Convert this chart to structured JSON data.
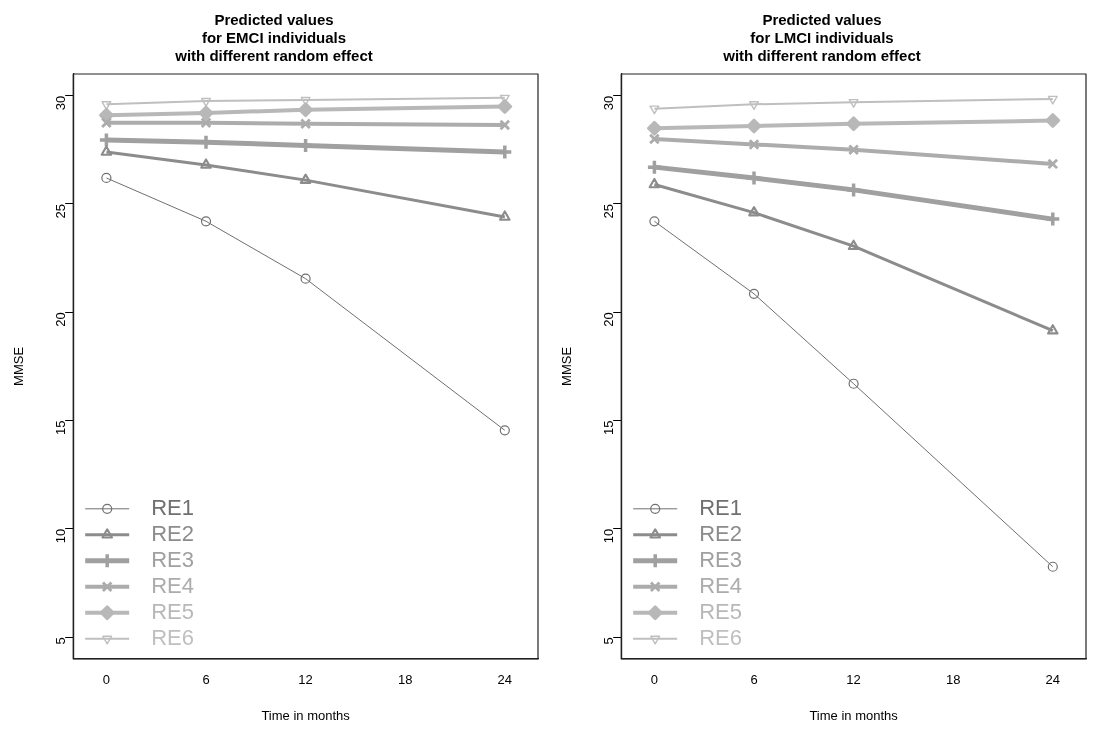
{
  "chart_data": [
    {
      "type": "line",
      "title": "Predicted values\nfor EMCI individuals\nwith different random effect",
      "xlabel": "Time in months",
      "ylabel": "MMSE",
      "x": [
        0,
        6,
        12,
        24
      ],
      "xlim": [
        -2,
        26
      ],
      "xticks": [
        0,
        6,
        12,
        18,
        24
      ],
      "ylim": [
        4,
        31
      ],
      "yticks": [
        5,
        10,
        15,
        20,
        25,
        30
      ],
      "grid": false,
      "legend": "bottom left",
      "series": [
        {
          "name": "RE1",
          "color": "#707070",
          "marker": "circle",
          "values": [
            26.2,
            24.2,
            21.55,
            14.55
          ]
        },
        {
          "name": "RE2",
          "color": "#8c8c8c",
          "marker": "triangle",
          "values": [
            27.4,
            26.8,
            26.1,
            24.4
          ]
        },
        {
          "name": "RE3",
          "color": "#a0a0a0",
          "marker": "plus",
          "values": [
            27.95,
            27.85,
            27.7,
            27.4
          ]
        },
        {
          "name": "RE4",
          "color": "#acacac",
          "marker": "cross",
          "values": [
            28.75,
            28.75,
            28.7,
            28.65
          ]
        },
        {
          "name": "RE5",
          "color": "#b8b8b8",
          "marker": "diamond",
          "values": [
            29.1,
            29.2,
            29.35,
            29.5
          ]
        },
        {
          "name": "RE6",
          "color": "#bfbfbf",
          "marker": "triangle-down",
          "values": [
            29.6,
            29.75,
            29.8,
            29.9
          ]
        }
      ]
    },
    {
      "type": "line",
      "title": "Predicted values\nfor LMCI individuals\nwith different random effect",
      "xlabel": "Time in months",
      "ylabel": "MMSE",
      "x": [
        0,
        6,
        12,
        24
      ],
      "xlim": [
        -2,
        26
      ],
      "xticks": [
        0,
        6,
        12,
        18,
        24
      ],
      "ylim": [
        4,
        31
      ],
      "yticks": [
        5,
        10,
        15,
        20,
        25,
        30
      ],
      "grid": false,
      "legend": "bottom left",
      "series": [
        {
          "name": "RE1",
          "color": "#707070",
          "marker": "circle",
          "values": [
            24.2,
            20.85,
            16.7,
            8.25
          ]
        },
        {
          "name": "RE2",
          "color": "#8c8c8c",
          "marker": "triangle",
          "values": [
            25.9,
            24.6,
            23.05,
            19.15
          ]
        },
        {
          "name": "RE3",
          "color": "#a0a0a0",
          "marker": "plus",
          "values": [
            26.7,
            26.2,
            25.65,
            24.3
          ]
        },
        {
          "name": "RE4",
          "color": "#acacac",
          "marker": "cross",
          "values": [
            28.0,
            27.75,
            27.5,
            26.85
          ]
        },
        {
          "name": "RE5",
          "color": "#b8b8b8",
          "marker": "diamond",
          "values": [
            28.5,
            28.6,
            28.7,
            28.85
          ]
        },
        {
          "name": "RE6",
          "color": "#bfbfbf",
          "marker": "triangle-down",
          "values": [
            29.4,
            29.6,
            29.7,
            29.85
          ]
        }
      ]
    }
  ]
}
